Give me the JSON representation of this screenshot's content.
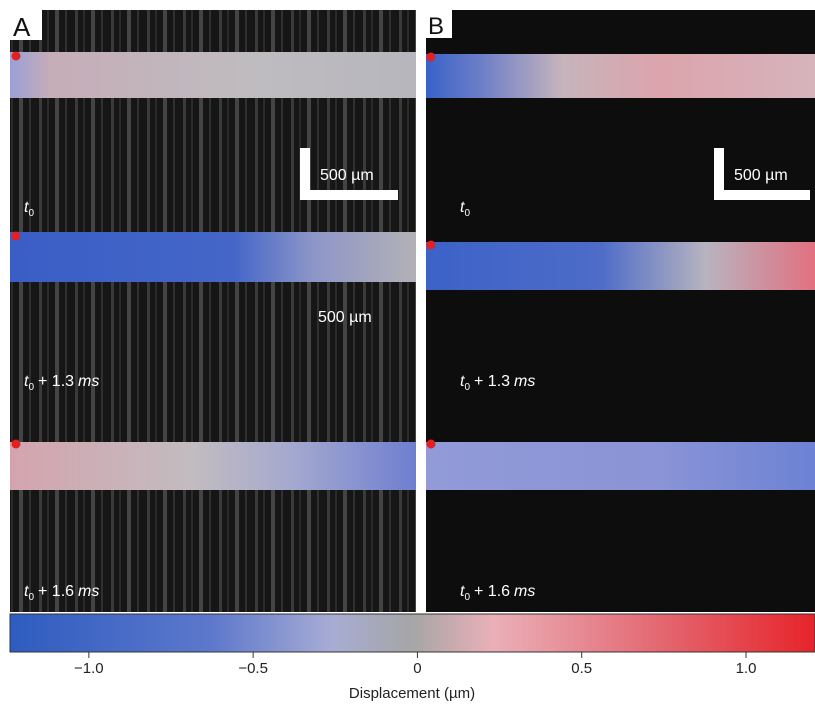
{
  "panels": [
    {
      "letter": "A",
      "frames": [
        {
          "var": "t",
          "sub": "0"
        },
        {
          "var": "t",
          "sub": "0",
          "offset": "+ 1.3",
          "unit": "ms"
        },
        {
          "var": "t",
          "sub": "0",
          "offset": "+ 1.6",
          "unit": "ms"
        }
      ],
      "scale_bar": "500 µm",
      "stray_label": "500 µm"
    },
    {
      "letter": "B",
      "frames": [
        {
          "var": "t",
          "sub": "0"
        },
        {
          "var": "t",
          "sub": "0",
          "offset": "+ 1.3",
          "unit": "ms"
        },
        {
          "var": "t",
          "sub": "0",
          "offset": "+ 1.6",
          "unit": "ms"
        }
      ],
      "scale_bar": "500 µm"
    }
  ],
  "colorbar": {
    "label": "Displacement (µm)",
    "lim": [
      -1.24,
      1.21
    ],
    "ticks": [
      {
        "value": -1,
        "label": "−1.0"
      },
      {
        "value": -0.5,
        "label": "−0.5"
      },
      0,
      0.5,
      {
        "value": 1,
        "label": "1.0"
      }
    ]
  }
}
